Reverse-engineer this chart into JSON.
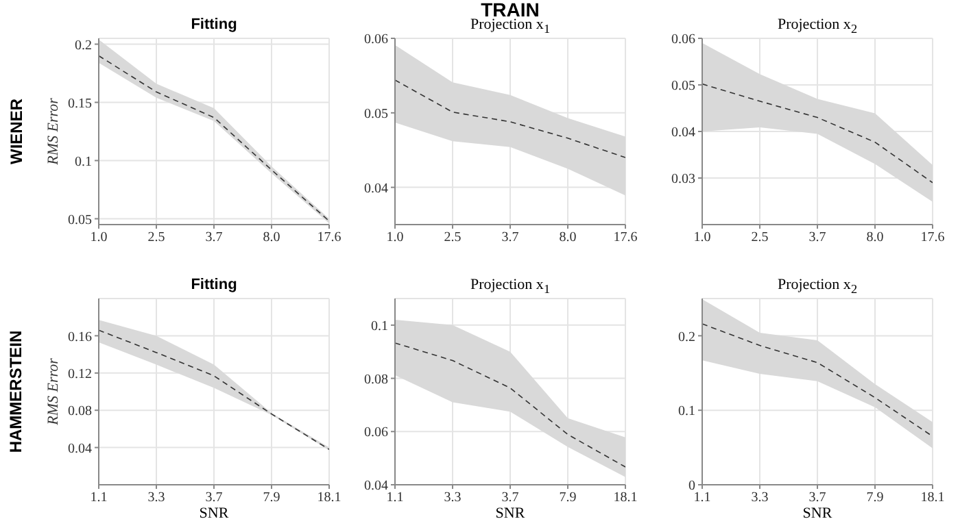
{
  "chart_data": [
    {
      "type": "line",
      "title": "Fitting",
      "ylabel": "RMS Error",
      "annotations": [
        "WIENER"
      ],
      "categories": [
        "1.0",
        "2.5",
        "3.7",
        "8.0",
        "17.6"
      ],
      "ylim": [
        0.045,
        0.205
      ],
      "yticks": [
        0.05,
        0.1,
        0.15,
        0.2
      ],
      "grid": true,
      "marker": "none",
      "line_style": "dashed",
      "series": [
        {
          "color": "#333333",
          "values": [
            0.19,
            0.159,
            0.137,
            0.092,
            0.048
          ],
          "lower": [
            0.184,
            0.154,
            0.134,
            0.089,
            0.046
          ],
          "upper": [
            0.204,
            0.166,
            0.145,
            0.095,
            0.05
          ]
        }
      ]
    },
    {
      "type": "line",
      "title": "Projection x$_{1}$",
      "annotations": [
        "TRAIN"
      ],
      "categories": [
        "1.0",
        "2.5",
        "3.7",
        "8.0",
        "17.6"
      ],
      "ylim": [
        0.035,
        0.06
      ],
      "yticks": [
        0.04,
        0.05,
        0.06
      ],
      "grid": true,
      "marker": "none",
      "line_style": "dashed",
      "series": [
        {
          "color": "#333333",
          "values": [
            0.0544,
            0.0501,
            0.0488,
            0.0466,
            0.044
          ],
          "lower": [
            0.0487,
            0.0462,
            0.0454,
            0.0425,
            0.0389
          ],
          "upper": [
            0.0591,
            0.0541,
            0.0524,
            0.0493,
            0.0468
          ]
        }
      ]
    },
    {
      "type": "line",
      "title": "Projection x$_{2}$",
      "categories": [
        "1.0",
        "2.5",
        "3.7",
        "8.0",
        "17.6"
      ],
      "ylim": [
        0.02,
        0.06
      ],
      "yticks": [
        0.03,
        0.04,
        0.05,
        0.06
      ],
      "grid": true,
      "marker": "none",
      "line_style": "dashed",
      "series": [
        {
          "color": "#333333",
          "values": [
            0.0502,
            0.0465,
            0.043,
            0.0377,
            0.029
          ],
          "lower": [
            0.04,
            0.0409,
            0.0395,
            0.033,
            0.0249
          ],
          "upper": [
            0.059,
            0.0523,
            0.047,
            0.0439,
            0.0328
          ]
        }
      ]
    },
    {
      "type": "line",
      "title": "Fitting",
      "ylabel": "RMS Error",
      "xlabel": "SNR",
      "annotations": [
        "HAMMERSTEIN"
      ],
      "categories": [
        "1.1",
        "3.3",
        "3.7",
        "7.9",
        "18.1"
      ],
      "ylim": [
        0,
        0.2
      ],
      "yticks": [
        0.04,
        0.08,
        0.12,
        0.16
      ],
      "grid": true,
      "marker": "none",
      "line_style": "dashed",
      "series": [
        {
          "color": "#333333",
          "values": [
            0.166,
            0.142,
            0.117,
            0.076,
            0.038
          ],
          "lower": [
            0.153,
            0.129,
            0.104,
            0.075,
            0.037
          ],
          "upper": [
            0.177,
            0.16,
            0.129,
            0.077,
            0.04
          ]
        }
      ]
    },
    {
      "type": "line",
      "title": "Projection x$_{1}$",
      "xlabel": "SNR",
      "categories": [
        "1.1",
        "3.3",
        "3.7",
        "7.9",
        "18.1"
      ],
      "ylim": [
        0.04,
        0.11
      ],
      "yticks": [
        0.04,
        0.06,
        0.08,
        0.1
      ],
      "grid": true,
      "marker": "none",
      "line_style": "dashed",
      "series": [
        {
          "color": "#333333",
          "values": [
            0.0933,
            0.0867,
            0.0764,
            0.0589,
            0.0467
          ],
          "lower": [
            0.0812,
            0.071,
            0.0675,
            0.0542,
            0.0429
          ],
          "upper": [
            0.102,
            0.1,
            0.09,
            0.065,
            0.0578
          ]
        }
      ]
    },
    {
      "type": "line",
      "title": "Projection x$_{2}$",
      "xlabel": "SNR",
      "categories": [
        "1.1",
        "3.3",
        "3.7",
        "7.9",
        "18.1"
      ],
      "ylim": [
        0,
        0.25
      ],
      "yticks": [
        0,
        0.1,
        0.2
      ],
      "grid": true,
      "marker": "none",
      "line_style": "dashed",
      "series": [
        {
          "color": "#333333",
          "values": [
            0.216,
            0.187,
            0.164,
            0.117,
            0.065
          ],
          "lower": [
            0.167,
            0.149,
            0.139,
            0.104,
            0.049
          ],
          "upper": [
            0.249,
            0.204,
            0.194,
            0.135,
            0.084
          ]
        }
      ]
    }
  ]
}
